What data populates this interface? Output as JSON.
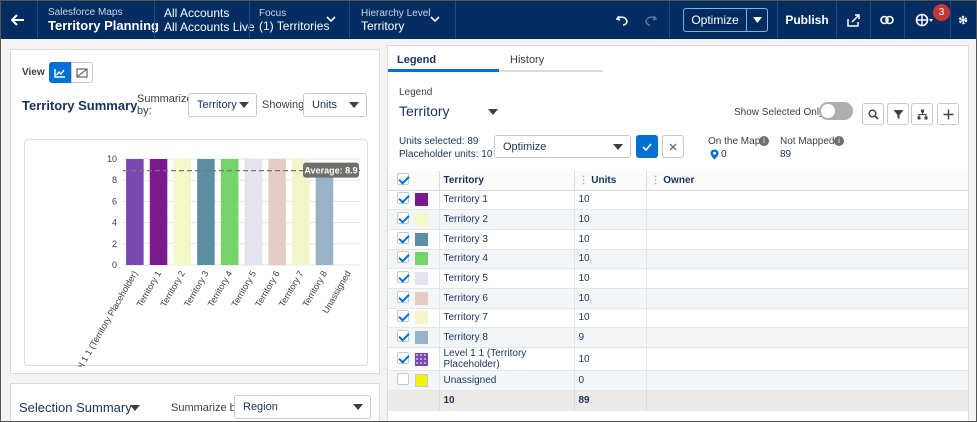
{
  "topbar": {
    "back_icon": "arrow-left-icon",
    "app_name": "Salesforce Maps",
    "page_title": "Territory Planning",
    "accounts_label": "All Accounts",
    "accounts_value": "All Accounts Live",
    "focus_label": "Focus",
    "focus_value": "(1) Territories",
    "hierarchy_label": "Hierarchy Level",
    "hierarchy_value": "Territory",
    "optimize_label": "Optimize",
    "publish_label": "Publish",
    "notification_count": "3",
    "colors": {
      "bar": "#032d60",
      "badge": "#c23934"
    }
  },
  "left": {
    "view_label": "View",
    "summary_title": "Territory Summary",
    "summarize_label": "Summarize by:",
    "summarize_value": "Territory",
    "showing_label": "Showing:",
    "showing_value": "Units",
    "selection_title": "Selection Summary",
    "selection_summarize_label": "Summarize by:",
    "selection_summarize_value": "Region"
  },
  "chart_data": {
    "type": "bar",
    "categories": [
      "Level 1 1 (Territory Placeholder)",
      "Territory 1",
      "Territory 2",
      "Territory 3",
      "Territory 4",
      "Territory 5",
      "Territory 6",
      "Territory 7",
      "Territory 8",
      "Unassigned"
    ],
    "values": [
      10,
      10,
      10,
      10,
      10,
      10,
      10,
      10,
      9,
      0
    ],
    "colors": [
      "#7b48b0",
      "#7a1a8e",
      "#f4f7c6",
      "#5b8ea3",
      "#73d46a",
      "#e6e3f0",
      "#e5ccc2",
      "#f2f5c9",
      "#98b3c8",
      "#f2f20a"
    ],
    "ylim": [
      0,
      10
    ],
    "yticks": [
      0,
      2,
      4,
      6,
      8,
      10
    ],
    "average": 8.9,
    "average_label": "Average: 8.9",
    "grid": true
  },
  "right": {
    "tab_legend": "Legend",
    "tab_history": "History",
    "legend_label": "Legend",
    "legend_value": "Territory",
    "show_selected_label": "Show Selected Only",
    "units_selected": "Units selected: 89",
    "placeholder_units": "Placeholder units: 10",
    "optimize_select": "Optimize",
    "on_map_label": "On the Map",
    "on_map_value": "0",
    "not_mapped_label": "Not Mapped",
    "not_mapped_value": "89",
    "columns": [
      "Territory",
      "Units",
      "Owner"
    ],
    "rows": [
      {
        "name": "Territory 1",
        "units": "10",
        "color": "#7a1a8e",
        "checked": true
      },
      {
        "name": "Territory 2",
        "units": "10",
        "color": "#f4f7c6",
        "checked": true
      },
      {
        "name": "Territory 3",
        "units": "10",
        "color": "#5b8ea3",
        "checked": true
      },
      {
        "name": "Territory 4",
        "units": "10",
        "color": "#73d46a",
        "checked": true
      },
      {
        "name": "Territory 5",
        "units": "10",
        "color": "#e6e3f0",
        "checked": true
      },
      {
        "name": "Territory 6",
        "units": "10",
        "color": "#e5ccc2",
        "checked": true
      },
      {
        "name": "Territory 7",
        "units": "10",
        "color": "#f2f5c9",
        "checked": true
      },
      {
        "name": "Territory 8",
        "units": "9",
        "color": "#98b3c8",
        "checked": true
      },
      {
        "name": "Level 1 1 (Territory Placeholder)",
        "units": "10",
        "color": "#7b48b0",
        "checked": true
      },
      {
        "name": "Unassigned",
        "units": "0",
        "color": "#f2f20a",
        "checked": false
      }
    ],
    "total_count": "10",
    "total_units": "89"
  }
}
